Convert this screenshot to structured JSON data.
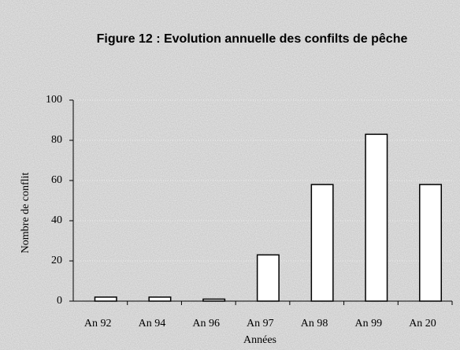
{
  "chart_data": {
    "type": "bar",
    "title": "Figure 12 : Evolution annuelle des confilts de pêche",
    "y_label": "Nombre de conflit",
    "x_label": "Années",
    "categories": [
      "An 92",
      "An 94",
      "An 96",
      "An 97",
      "An 98",
      "An 99",
      "An 20"
    ],
    "values": [
      2,
      2,
      1,
      23,
      58,
      83,
      58
    ],
    "color": "#ffffff",
    "ylim": [
      0,
      100
    ],
    "yticks": [
      0,
      20,
      40,
      60,
      80,
      100
    ],
    "grid": true
  }
}
